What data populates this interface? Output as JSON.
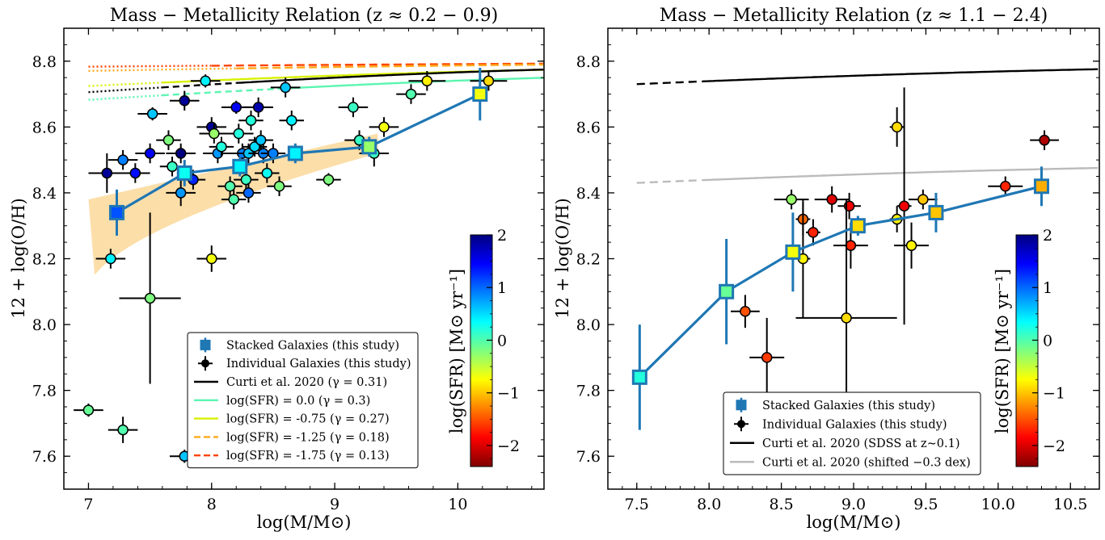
{
  "colors": {
    "stack": "#1f77b4",
    "curti": "#000000",
    "sfr00": "#5bf5b0",
    "sfr075": "#d8f000",
    "sfr125": "#ffa91b",
    "sfr175": "#ff4400",
    "band": "#fcd89a",
    "shifted": "#bbbbbb"
  },
  "chart_data": [
    {
      "type": "scatter",
      "title": "Mass − Metallicity Relation (z ≈ 0.2 − 0.9)",
      "xlabel": "log(M/M⊙)",
      "ylabel": "12 + log(O/H)",
      "xlim": [
        6.8,
        10.7
      ],
      "ylim": [
        7.5,
        8.9
      ],
      "xticks": [
        7,
        8,
        9,
        10
      ],
      "xtick_labels": [
        "7",
        "8",
        "9",
        "10"
      ],
      "yticks": [
        7.6,
        7.8,
        8.0,
        8.2,
        8.4,
        8.6,
        8.8
      ],
      "ytick_labels": [
        "7.6",
        "7.8",
        "8.0",
        "8.2",
        "8.4",
        "8.6",
        "8.8"
      ],
      "colorbar": {
        "label": "log(SFR) [M⊙ yr⁻¹]",
        "range": [
          -2.4,
          2
        ],
        "ticks": [
          -2,
          -1,
          0,
          1,
          2
        ],
        "tick_labels": [
          "−2",
          "−1",
          "0",
          "1",
          "2"
        ],
        "colormap": "jet"
      },
      "legend": {
        "position": "lower-right",
        "entries": [
          {
            "label": "Stacked Galaxies (this study)",
            "kind": "stack"
          },
          {
            "label": "Individual Galaxies (this study)",
            "kind": "indiv"
          },
          {
            "label": "Curti et al. 2020 (γ = 0.31)",
            "kind": "curti"
          },
          {
            "label": "log(SFR) = 0.0 (γ = 0.3)",
            "kind": "sfr00"
          },
          {
            "label": "log(SFR) = -0.75 (γ = 0.27)",
            "kind": "sfr075"
          },
          {
            "label": "log(SFR) = -1.25 (γ = 0.18)",
            "kind": "sfr125"
          },
          {
            "label": "log(SFR) = -1.75 (γ = 0.13)",
            "kind": "sfr175"
          }
        ]
      },
      "stacked": [
        {
          "x": 7.23,
          "y": 8.34,
          "yerr": 0.07,
          "sfr": -1.5
        },
        {
          "x": 7.78,
          "y": 8.46,
          "yerr": 0.04,
          "sfr": -0.7
        },
        {
          "x": 8.23,
          "y": 8.48,
          "yerr": 0.03,
          "sfr": -0.8
        },
        {
          "x": 8.68,
          "y": 8.52,
          "yerr": 0.03,
          "sfr": -0.8
        },
        {
          "x": 9.28,
          "y": 8.54,
          "yerr": 0.03,
          "sfr": -0.1
        },
        {
          "x": 10.18,
          "y": 8.7,
          "yerr": 0.08,
          "sfr": 0.3
        }
      ],
      "individual": [
        {
          "x": 7.15,
          "y": 8.46,
          "xerr": 0.15,
          "yerr": 0.06,
          "sfr": -2.3
        },
        {
          "x": 7.28,
          "y": 8.5,
          "xerr": 0.12,
          "yerr": 0.03,
          "sfr": -1.3
        },
        {
          "x": 7.38,
          "y": 8.46,
          "xerr": 0.12,
          "yerr": 0.03,
          "sfr": -1.8
        },
        {
          "x": 7.5,
          "y": 8.52,
          "xerr": 0.12,
          "yerr": 0.03,
          "sfr": -1.9
        },
        {
          "x": 7.52,
          "y": 8.64,
          "xerr": 0.12,
          "yerr": 0.02,
          "sfr": -1.0
        },
        {
          "x": 7.18,
          "y": 8.2,
          "xerr": 0.12,
          "yerr": 0.03,
          "sfr": -0.8
        },
        {
          "x": 7.0,
          "y": 7.74,
          "xerr": 0.12,
          "yerr": 0.02,
          "sfr": -0.3
        },
        {
          "x": 7.28,
          "y": 7.68,
          "xerr": 0.12,
          "yerr": 0.04,
          "sfr": -0.4
        },
        {
          "x": 7.5,
          "y": 8.08,
          "xerr": 0.25,
          "yerr": 0.26,
          "sfr": -0.2
        },
        {
          "x": 7.65,
          "y": 8.56,
          "xerr": 0.1,
          "yerr": 0.03,
          "sfr": -0.2
        },
        {
          "x": 7.68,
          "y": 8.48,
          "xerr": 0.1,
          "yerr": 0.03,
          "sfr": -0.5
        },
        {
          "x": 7.75,
          "y": 8.52,
          "xerr": 0.12,
          "yerr": 0.03,
          "sfr": -2.4
        },
        {
          "x": 7.78,
          "y": 8.68,
          "xerr": 0.12,
          "yerr": 0.03,
          "sfr": -2.3
        },
        {
          "x": 7.75,
          "y": 8.4,
          "xerr": 0.12,
          "yerr": 0.04,
          "sfr": -1.2
        },
        {
          "x": 7.85,
          "y": 8.44,
          "xerr": 0.1,
          "yerr": 0.03,
          "sfr": -1.7
        },
        {
          "x": 7.78,
          "y": 7.6,
          "xerr": 0.12,
          "yerr": 0.02,
          "sfr": -1.0
        },
        {
          "x": 7.95,
          "y": 8.74,
          "xerr": 0.12,
          "yerr": 0.02,
          "sfr": -0.8
        },
        {
          "x": 8.0,
          "y": 8.6,
          "xerr": 0.12,
          "yerr": 0.03,
          "sfr": -2.3
        },
        {
          "x": 8.02,
          "y": 8.58,
          "xerr": 0.12,
          "yerr": 0.03,
          "sfr": -0.1
        },
        {
          "x": 8.05,
          "y": 8.52,
          "xerr": 0.12,
          "yerr": 0.03,
          "sfr": -1.2
        },
        {
          "x": 8.08,
          "y": 8.54,
          "xerr": 0.1,
          "yerr": 0.03,
          "sfr": -0.6
        },
        {
          "x": 8.15,
          "y": 8.42,
          "xerr": 0.1,
          "yerr": 0.03,
          "sfr": -0.4
        },
        {
          "x": 8.18,
          "y": 8.38,
          "xerr": 0.1,
          "yerr": 0.03,
          "sfr": -0.4
        },
        {
          "x": 8.2,
          "y": 8.66,
          "xerr": 0.12,
          "yerr": 0.02,
          "sfr": -1.9
        },
        {
          "x": 8.22,
          "y": 8.58,
          "xerr": 0.12,
          "yerr": 0.03,
          "sfr": -0.6
        },
        {
          "x": 8.25,
          "y": 8.52,
          "xerr": 0.12,
          "yerr": 0.03,
          "sfr": -1.3
        },
        {
          "x": 8.28,
          "y": 8.44,
          "xerr": 0.1,
          "yerr": 0.03,
          "sfr": -0.5
        },
        {
          "x": 8.3,
          "y": 8.52,
          "xerr": 0.1,
          "yerr": 0.03,
          "sfr": -1.0
        },
        {
          "x": 8.32,
          "y": 8.62,
          "xerr": 0.1,
          "yerr": 0.03,
          "sfr": -0.6
        },
        {
          "x": 8.3,
          "y": 8.4,
          "xerr": 0.1,
          "yerr": 0.03,
          "sfr": -1.4
        },
        {
          "x": 8.35,
          "y": 8.54,
          "xerr": 0.1,
          "yerr": 0.03,
          "sfr": -0.9
        },
        {
          "x": 8.38,
          "y": 8.66,
          "xerr": 0.12,
          "yerr": 0.03,
          "sfr": -2.2
        },
        {
          "x": 8.42,
          "y": 8.52,
          "xerr": 0.12,
          "yerr": 0.03,
          "sfr": -1.3
        },
        {
          "x": 8.4,
          "y": 8.56,
          "xerr": 0.1,
          "yerr": 0.03,
          "sfr": -1.0
        },
        {
          "x": 8.45,
          "y": 8.46,
          "xerr": 0.1,
          "yerr": 0.03,
          "sfr": -0.7
        },
        {
          "x": 8.5,
          "y": 8.52,
          "xerr": 0.1,
          "yerr": 0.03,
          "sfr": -1.3
        },
        {
          "x": 8.55,
          "y": 8.42,
          "xerr": 0.1,
          "yerr": 0.03,
          "sfr": -0.2
        },
        {
          "x": 8.6,
          "y": 8.72,
          "xerr": 0.12,
          "yerr": 0.03,
          "sfr": -1.0
        },
        {
          "x": 8.65,
          "y": 8.62,
          "xerr": 0.1,
          "yerr": 0.03,
          "sfr": -0.8
        },
        {
          "x": 8.0,
          "y": 8.2,
          "xerr": 0.12,
          "yerr": 0.04,
          "sfr": 0.3
        },
        {
          "x": 8.95,
          "y": 8.44,
          "xerr": 0.1,
          "yerr": 0.02,
          "sfr": -0.2
        },
        {
          "x": 9.15,
          "y": 8.66,
          "xerr": 0.12,
          "yerr": 0.03,
          "sfr": -0.5
        },
        {
          "x": 9.2,
          "y": 8.56,
          "xerr": 0.12,
          "yerr": 0.03,
          "sfr": -0.5
        },
        {
          "x": 9.32,
          "y": 8.52,
          "xerr": 0.12,
          "yerr": 0.04,
          "sfr": -0.5
        },
        {
          "x": 9.4,
          "y": 8.6,
          "xerr": 0.12,
          "yerr": 0.03,
          "sfr": 0.3
        },
        {
          "x": 9.62,
          "y": 8.7,
          "xerr": 0.12,
          "yerr": 0.03,
          "sfr": -0.4
        },
        {
          "x": 9.75,
          "y": 8.74,
          "xerr": 0.15,
          "yerr": 0.03,
          "sfr": 0.4
        },
        {
          "x": 10.25,
          "y": 8.74,
          "xerr": 0.15,
          "yerr": 0.03,
          "sfr": 0.5
        }
      ],
      "band_fill": {
        "x0": 7.0,
        "x1": 9.35,
        "lower": [
          8.11,
          8.52
        ],
        "upper": [
          8.38,
          8.58
        ]
      }
    },
    {
      "type": "scatter",
      "title": "Mass − Metallicity Relation (z ≈ 1.1 − 2.4)",
      "xlabel": "log(M/M⊙)",
      "ylabel": "12 + log(O/H)",
      "xlim": [
        7.3,
        10.7
      ],
      "ylim": [
        7.5,
        8.9
      ],
      "xticks": [
        7.5,
        8.0,
        8.5,
        9.0,
        9.5,
        10.0,
        10.5
      ],
      "xtick_labels": [
        "7.5",
        "8.0",
        "8.5",
        "9.0",
        "9.5",
        "10.0",
        "10.5"
      ],
      "yticks": [
        7.6,
        7.8,
        8.0,
        8.2,
        8.4,
        8.6,
        8.8
      ],
      "ytick_labels": [
        "7.6",
        "7.8",
        "8.0",
        "8.2",
        "8.4",
        "8.6",
        "8.8"
      ],
      "colorbar": {
        "label": "log(SFR) [M⊙ yr⁻¹]",
        "range": [
          -2.4,
          2
        ],
        "ticks": [
          -2,
          -1,
          0,
          1,
          2
        ],
        "tick_labels": [
          "−2",
          "−1",
          "0",
          "1",
          "2"
        ],
        "colormap": "jet"
      },
      "legend": {
        "position": "lower-center",
        "entries": [
          {
            "label": "Stacked Galaxies (this study)",
            "kind": "stack"
          },
          {
            "label": "Individual Galaxies (this study)",
            "kind": "indiv"
          },
          {
            "label": "Curti et al. 2020 (SDSS at z∼0.1)",
            "kind": "curti"
          },
          {
            "label": "Curti et al. 2020 (shifted −0.3 dex)",
            "kind": "shifted"
          }
        ]
      },
      "stacked": [
        {
          "x": 7.52,
          "y": 7.84,
          "yerr": 0.16,
          "sfr": -0.6
        },
        {
          "x": 8.12,
          "y": 8.1,
          "yerr": 0.16,
          "sfr": -0.3
        },
        {
          "x": 8.58,
          "y": 8.22,
          "yerr": 0.12,
          "sfr": 0.3
        },
        {
          "x": 9.03,
          "y": 8.3,
          "yerr": 0.03,
          "sfr": 0.5
        },
        {
          "x": 9.57,
          "y": 8.34,
          "yerr": 0.06,
          "sfr": 0.6
        },
        {
          "x": 10.3,
          "y": 8.42,
          "yerr": 0.06,
          "sfr": 0.7
        }
      ],
      "individual": [
        {
          "x": 8.25,
          "y": 8.04,
          "xerr": 0.1,
          "yerr": 0.05,
          "sfr": 1.1
        },
        {
          "x": 8.4,
          "y": 7.9,
          "xerr": 0.12,
          "yerr": 0.12,
          "sfr": 1.2
        },
        {
          "x": 8.57,
          "y": 8.38,
          "xerr": 0.12,
          "yerr": 0.03,
          "sfr": -0.1
        },
        {
          "x": 8.65,
          "y": 8.32,
          "xerr": 0.05,
          "yerr": 0.05,
          "sfr": 1.0
        },
        {
          "x": 8.65,
          "y": 8.2,
          "xerr": 0.05,
          "yerr": 0.18,
          "sfr": 0.4
        },
        {
          "x": 8.72,
          "y": 8.28,
          "xerr": 0.05,
          "yerr": 0.04,
          "sfr": 1.3
        },
        {
          "x": 8.85,
          "y": 8.38,
          "xerr": 0.12,
          "yerr": 0.04,
          "sfr": 1.6
        },
        {
          "x": 8.97,
          "y": 8.36,
          "xerr": 0.08,
          "yerr": 0.04,
          "sfr": 1.5
        },
        {
          "x": 8.98,
          "y": 8.24,
          "xerr": 0.12,
          "yerr": 0.07,
          "sfr": 1.3
        },
        {
          "x": 8.95,
          "y": 8.02,
          "xerr": 0.35,
          "yerr": 0.36,
          "sfr": 0.5
        },
        {
          "x": 9.3,
          "y": 8.6,
          "xerr": 0.05,
          "yerr": 0.06,
          "sfr": 0.5
        },
        {
          "x": 9.3,
          "y": 8.32,
          "xerr": 0.05,
          "yerr": 0.04,
          "sfr": 0.4
        },
        {
          "x": 9.35,
          "y": 8.36,
          "xerr": 0.05,
          "yerr": 0.36,
          "sfr": 1.5
        },
        {
          "x": 9.4,
          "y": 8.24,
          "xerr": 0.12,
          "yerr": 0.07,
          "sfr": 0.4
        },
        {
          "x": 9.48,
          "y": 8.38,
          "xerr": 0.1,
          "yerr": 0.03,
          "sfr": 0.6
        },
        {
          "x": 10.05,
          "y": 8.42,
          "xerr": 0.12,
          "yerr": 0.03,
          "sfr": 1.3
        },
        {
          "x": 10.32,
          "y": 8.56,
          "xerr": 0.1,
          "yerr": 0.03,
          "sfr": 1.8
        }
      ]
    }
  ]
}
